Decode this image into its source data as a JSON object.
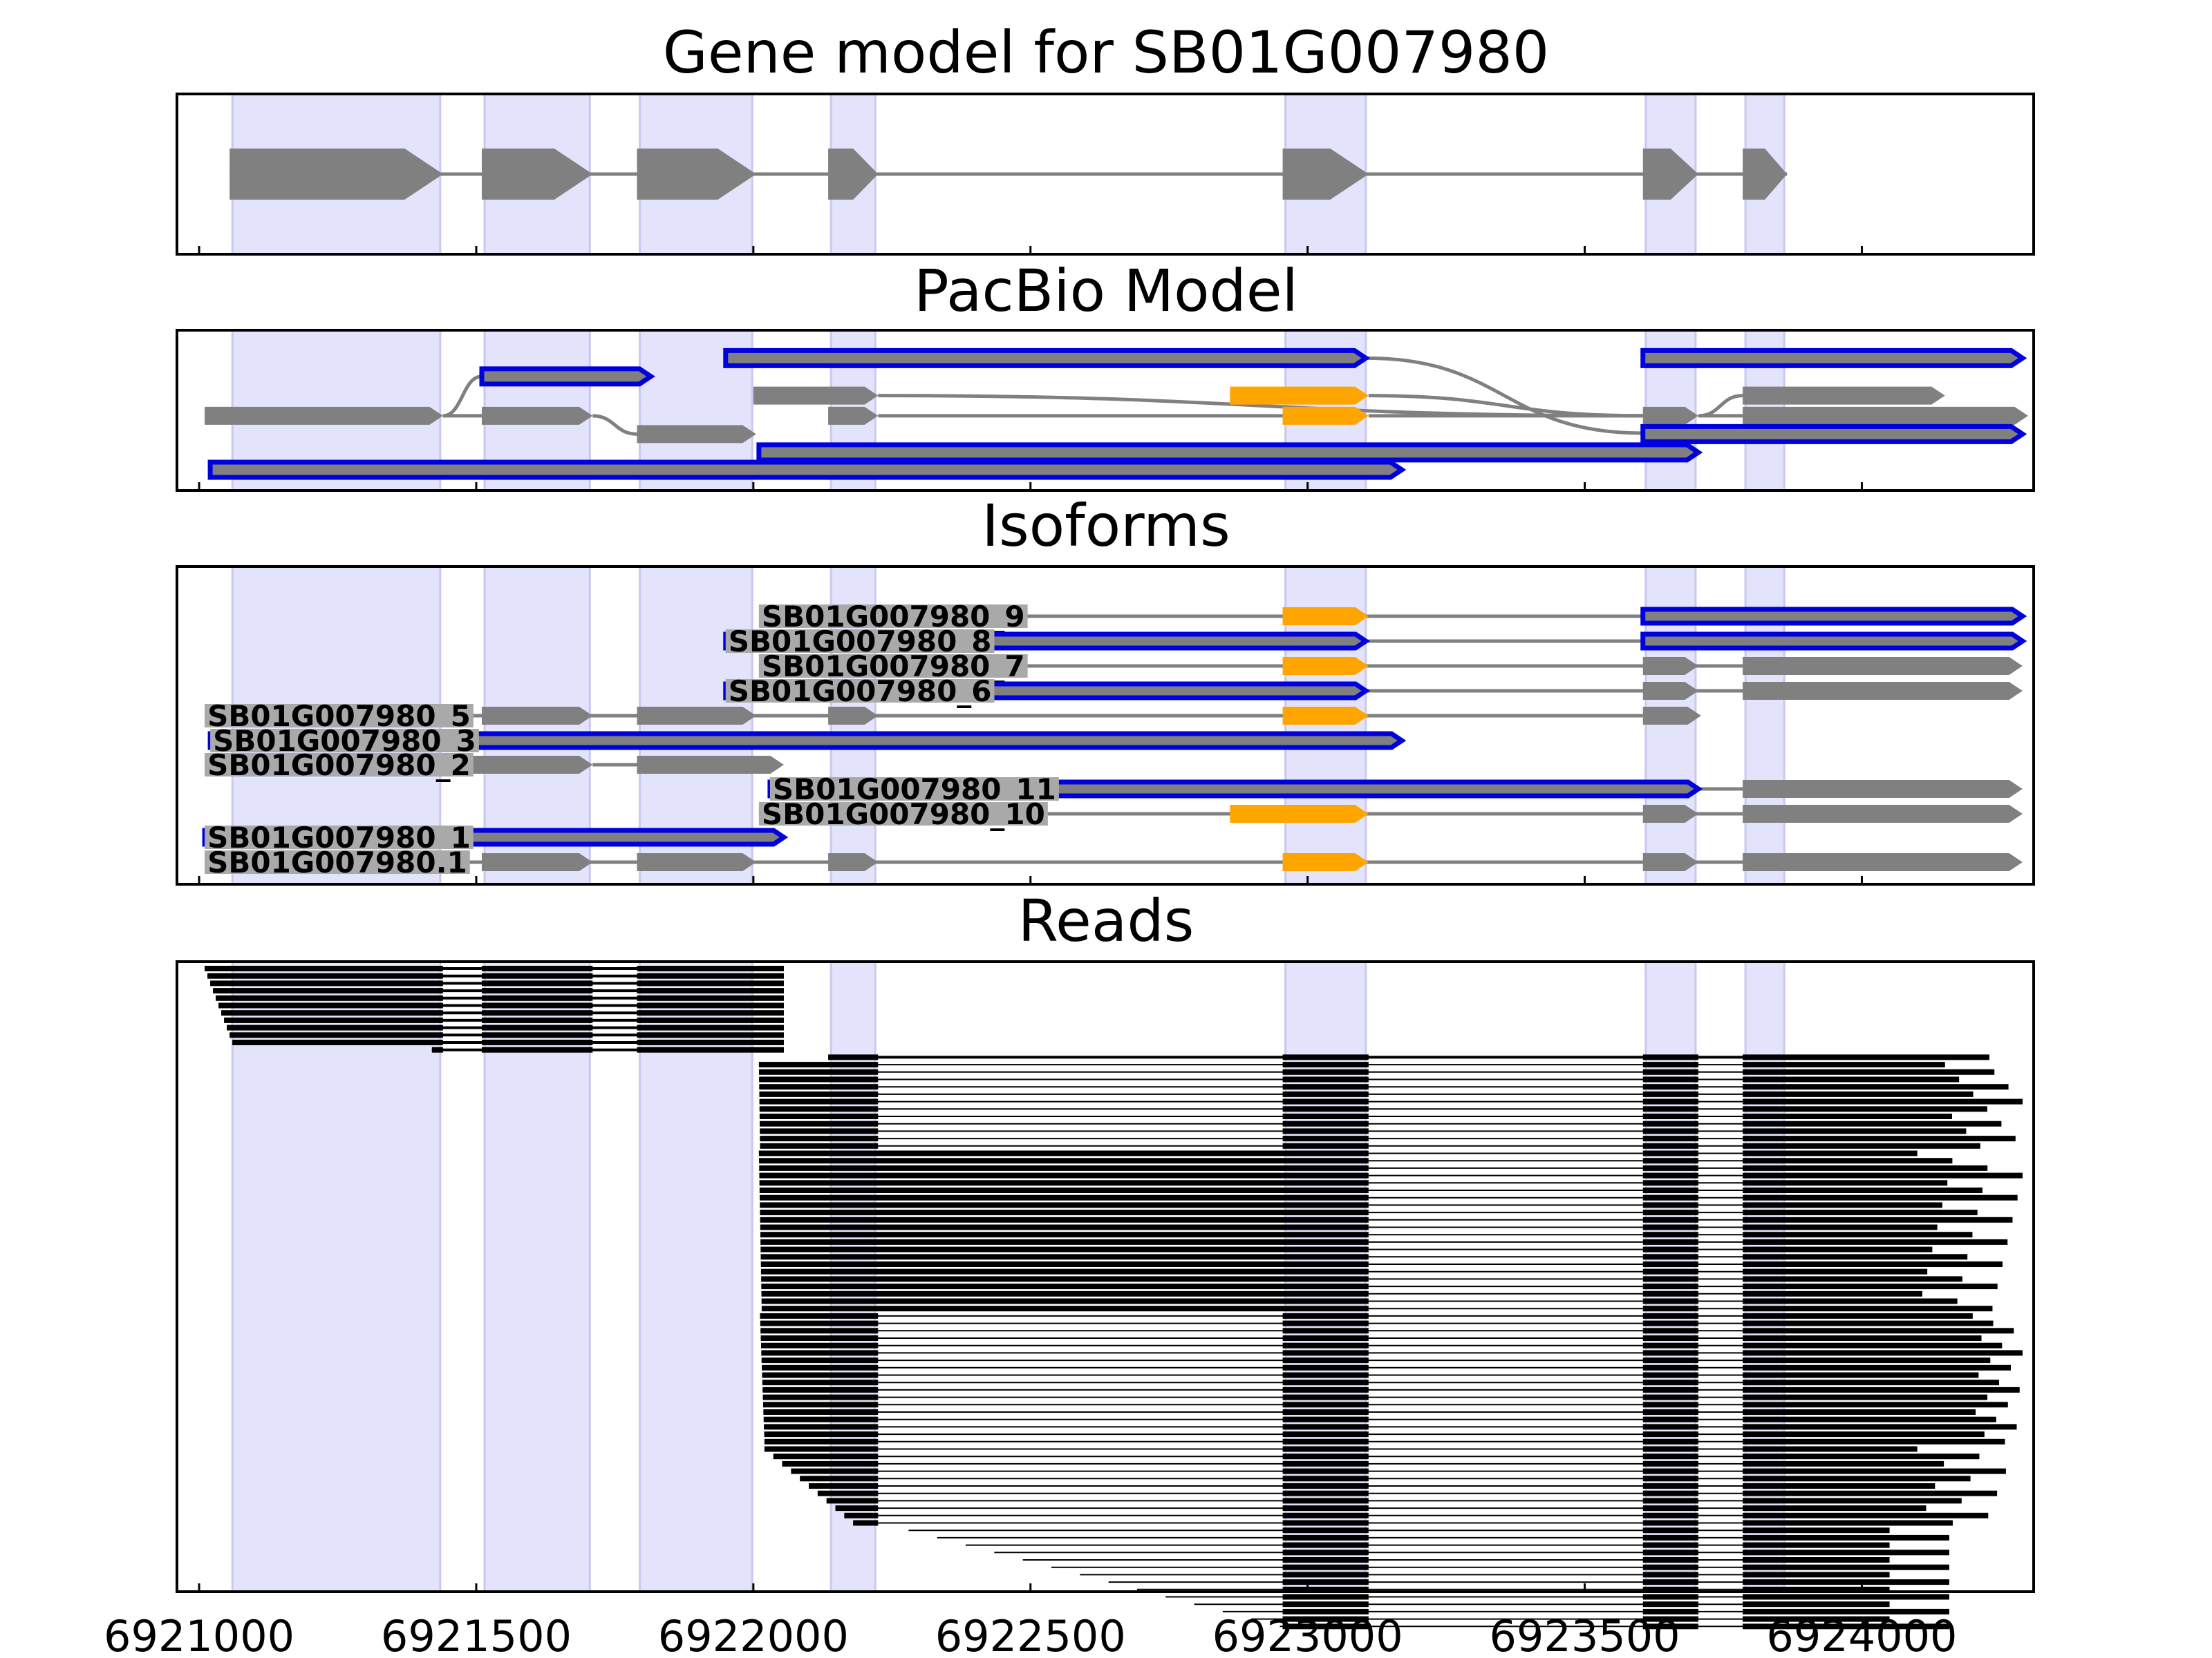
{
  "colors": {
    "exon_band": "#e3e3fb",
    "exon_band_edge": "#c9c9f0",
    "gray_feature": "#808080",
    "blue_edge": "#0000dd",
    "orange_exon": "#ffa500",
    "read": "#000000",
    "label_box": "#a9a9a9"
  },
  "chart_data": {
    "type": "gene-structure",
    "xlim": [
      6920960,
      6924310
    ],
    "xticks": [
      6921000,
      6921500,
      6922000,
      6922500,
      6923000,
      6923500,
      6924000
    ],
    "xtick_labels": [
      "6921000",
      "6921500",
      "6922000",
      "6922500",
      "6923000",
      "6923500",
      "6924000"
    ],
    "exon_bands": [
      [
        6921060,
        6921435
      ],
      [
        6921515,
        6921705
      ],
      [
        6921795,
        6921998
      ],
      [
        6922140,
        6922220
      ],
      [
        6922960,
        6923105
      ],
      [
        6923610,
        6923700
      ],
      [
        6923790,
        6923860
      ]
    ],
    "panels": {
      "gene_model": {
        "title": "Gene model for SB01G007980",
        "exons": [
          [
            6921055,
            6921440
          ],
          [
            6921510,
            6921710
          ],
          [
            6921790,
            6922005
          ],
          [
            6922135,
            6922225
          ],
          [
            6922955,
            6923110
          ],
          [
            6923605,
            6923705
          ],
          [
            6923785,
            6923865
          ]
        ]
      },
      "pacbio": {
        "title": "PacBio Model",
        "tracks": [
          {
            "row": 6.1,
            "type": "blue",
            "span": [
              6921950,
              6923105
            ]
          },
          {
            "row": 5.1,
            "type": "blue",
            "span": [
              6921510,
              6921815
            ]
          },
          {
            "row": 4.05,
            "type": "gray",
            "exons": [
              [
                6922000,
                6922225
              ]
            ],
            "link_to": 2.0,
            "link_span": [
              6922225,
              6923605
            ]
          },
          {
            "row": 4.05,
            "type": "orange",
            "exons": [
              [
                6922860,
                6923110
              ]
            ]
          },
          {
            "row": 2.95,
            "type": "gray",
            "exons": [
              [
                6921010,
                6921440
              ],
              [
                6921510,
                6921710
              ],
              [
                6922135,
                6922225
              ]
            ],
            "join": [
              [
                6921440,
                6921510,
                2.95,
                2.95
              ]
            ]
          },
          {
            "row": 2.95,
            "type": "orange",
            "exons": [
              [
                6922955,
                6923110
              ]
            ]
          },
          {
            "row": 1.95,
            "type": "gray",
            "exons": [
              [
                6921790,
                6922005
              ]
            ],
            "link_from": 2.95,
            "link_span": [
              6921710,
              6921790
            ]
          },
          {
            "row": 6.1,
            "type": "blue",
            "span": [
              6923605,
              6924290
            ]
          },
          {
            "row": 4.05,
            "type": "gray",
            "exons": [
              [
                6923785,
                6924150
              ]
            ]
          },
          {
            "row": 2.95,
            "type": "gray",
            "exons": [
              [
                6923605,
                6923705
              ],
              [
                6923785,
                6924300
              ]
            ]
          },
          {
            "row": 1.95,
            "type": "blue",
            "span": [
              6923605,
              6924290
            ]
          },
          {
            "row": 0.95,
            "type": "blue",
            "span": [
              6922010,
              6923705
            ]
          },
          {
            "row": 0.0,
            "type": "blue",
            "span": [
              6921020,
              6923170
            ]
          }
        ]
      },
      "isoforms": {
        "title": "Isoforms",
        "tracks": [
          {
            "name": "SB01G007980_9",
            "label_at": 6922010,
            "exons": [
              [
                6922955,
                6923110
              ]
            ],
            "orange": [
              [
                6922955,
                6923110
              ]
            ],
            "blue": [
              [
                6923605,
                6924290
              ]
            ],
            "intron": [
              6922010,
              6923605
            ]
          },
          {
            "name": "SB01G007980_8",
            "label_at": 6921950,
            "exons": [],
            "orange": [],
            "blue": [
              [
                6921950,
                6923105
              ],
              [
                6923605,
                6924290
              ]
            ],
            "intron": [
              6923105,
              6923605
            ]
          },
          {
            "name": "SB01G007980_7",
            "label_at": 6922010,
            "exons": [
              [
                6923605,
                6923705
              ],
              [
                6923785,
                6924290
              ]
            ],
            "orange": [
              [
                6922955,
                6923110
              ]
            ],
            "blue": [],
            "intron": [
              6922010,
              6923785
            ]
          },
          {
            "name": "SB01G007980_6",
            "label_at": 6921950,
            "exons": [
              [
                6923605,
                6923705
              ],
              [
                6923785,
                6924290
              ]
            ],
            "orange": [],
            "blue": [
              [
                6921950,
                6923105
              ]
            ],
            "intron": [
              6923105,
              6923785
            ]
          },
          {
            "name": "SB01G007980_5",
            "label_at": 6921010,
            "exons": [
              [
                6921010,
                6921440
              ],
              [
                6921510,
                6921710
              ],
              [
                6921790,
                6922005
              ],
              [
                6922135,
                6922225
              ],
              [
                6923605,
                6923710
              ]
            ],
            "orange": [
              [
                6922955,
                6923110
              ]
            ],
            "blue": [],
            "intron": [
              6921010,
              6923605
            ]
          },
          {
            "name": "SB01G007980_3",
            "label_at": 6921020,
            "exons": [],
            "orange": [],
            "blue": [
              [
                6921020,
                6923170
              ]
            ],
            "intron": null
          },
          {
            "name": "SB01G007980_2",
            "label_at": 6921010,
            "exons": [
              [
                6921010,
                6921710
              ],
              [
                6921790,
                6922055
              ]
            ],
            "orange": [],
            "blue": [],
            "intron": [
              6921710,
              6921790
            ]
          },
          {
            "name": "SB01G007980_11",
            "label_at": 6922030,
            "exons": [
              [
                6923785,
                6924290
              ]
            ],
            "orange": [],
            "blue": [
              [
                6922030,
                6923705
              ]
            ],
            "intron": [
              6923705,
              6923785
            ]
          },
          {
            "name": "SB01G007980_10",
            "label_at": 6922010,
            "exons": [
              [
                6923605,
                6923705
              ],
              [
                6923785,
                6924290
              ]
            ],
            "orange": [
              [
                6922860,
                6923110
              ]
            ],
            "blue": [],
            "intron": [
              6922010,
              6923785
            ]
          },
          {
            "name": "SB01G007980_1",
            "label_at": 6921010,
            "exons": [],
            "orange": [],
            "blue": [
              [
                6921010,
                6922055
              ]
            ],
            "intron": null
          },
          {
            "name": "SB01G007980.1",
            "label_at": 6921010,
            "exons": [
              [
                6921010,
                6921440
              ],
              [
                6921510,
                6921710
              ],
              [
                6921790,
                6922005
              ],
              [
                6922135,
                6922225
              ],
              [
                6923605,
                6923705
              ],
              [
                6923785,
                6924290
              ]
            ],
            "orange": [
              [
                6922955,
                6923110
              ]
            ],
            "blue": [],
            "intron": [
              6921010,
              6923785
            ]
          }
        ]
      },
      "reads": {
        "title": "Reads",
        "groups": [
          {
            "count": 11,
            "start_from": 6921010,
            "start_to": 6921060,
            "end": 6922055,
            "blocks": [
              [
                6921440,
                6921510
              ],
              [
                6921710,
                6921790
              ]
            ]
          },
          {
            "count": 1,
            "start_from": 6921420,
            "start_to": 6921420,
            "end": 6922055,
            "blocks": [
              [
                6921440,
                6921510
              ],
              [
                6921710,
                6921790
              ]
            ]
          },
          {
            "count": 1,
            "start_from": 6922135,
            "start_to": 6922135,
            "end": 6924230,
            "blocks": [
              [
                6922225,
                6922955
              ],
              [
                6923110,
                6923605
              ],
              [
                6923705,
                6923785
              ]
            ]
          },
          {
            "count": 12,
            "start_from": 6922010,
            "start_to": 6922012,
            "end_from": 6924150,
            "end_to": 6924290,
            "mode": "full"
          },
          {
            "count": 22,
            "start_from": 6922010,
            "start_to": 6922015,
            "end_from": 6924100,
            "end_to": 6924290,
            "mode": "intron-retained"
          },
          {
            "count": 18,
            "start_from": 6922012,
            "start_to": 6922020,
            "end_from": 6924200,
            "end_to": 6924290,
            "mode": "full"
          },
          {
            "count": 11,
            "start_from": 6922020,
            "start_to": 6922180,
            "end_from": 6924100,
            "end_to": 6924260,
            "mode": "full"
          },
          {
            "count": 14,
            "start_from": 6922280,
            "start_to": 6922950,
            "end_from": 6924050,
            "end_to": 6924250,
            "mode": "late"
          }
        ]
      }
    }
  }
}
